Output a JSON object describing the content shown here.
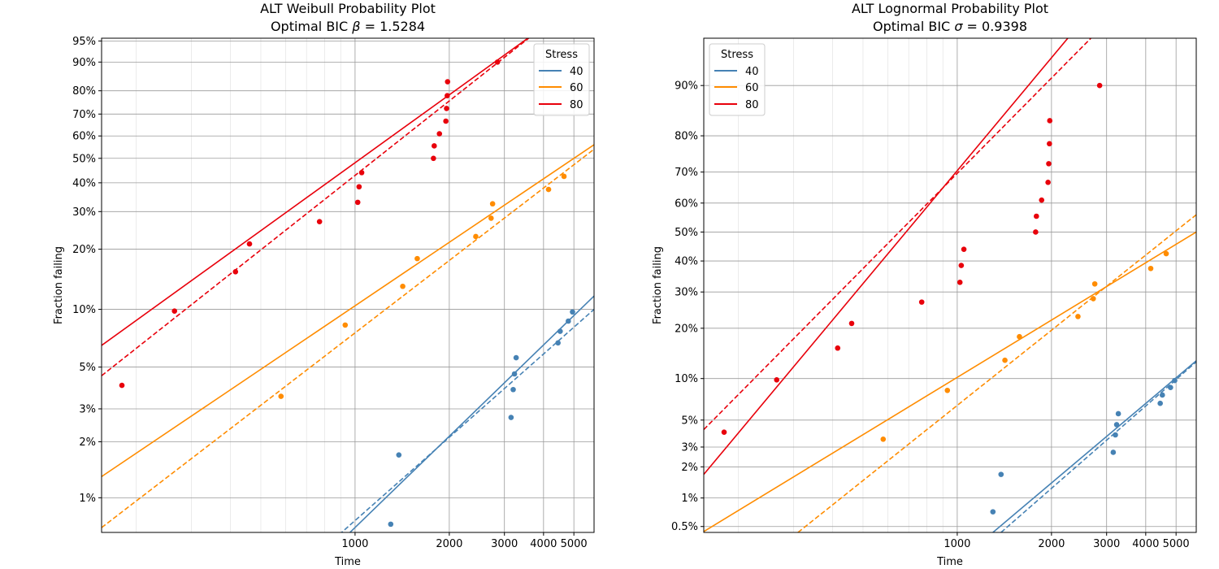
{
  "chart_data": [
    {
      "type": "scatter",
      "scale": "weibull",
      "title": "ALT Weibull Probability Plot",
      "subtitle_prefix": "Optimal BIC ",
      "subtitle_symbol": "β",
      "subtitle_suffix": " = 1.5284",
      "xlabel": "Time",
      "ylabel": "Fraction failing",
      "xscale": "log",
      "xlim": [
        155,
        5800
      ],
      "ylim": [
        0.0065,
        0.955
      ],
      "x_ticks": [
        1000,
        2000,
        3000,
        4000,
        5000
      ],
      "x_tick_labels": [
        "1000",
        "2000",
        "3000",
        "4000",
        "5000"
      ],
      "y_ticks": [
        0.01,
        0.02,
        0.03,
        0.05,
        0.1,
        0.2,
        0.3,
        0.4,
        0.5,
        0.6,
        0.7,
        0.8,
        0.9,
        0.95
      ],
      "y_tick_labels": [
        "1%",
        "2%",
        "3%",
        "5%",
        "10%",
        "20%",
        "30%",
        "40%",
        "50%",
        "60%",
        "70%",
        "80%",
        "90%",
        "95%"
      ],
      "grid": true,
      "legend": {
        "title": "Stress",
        "position": "top-right",
        "entries": [
          "40",
          "60",
          "80"
        ]
      },
      "series": [
        {
          "name": "40",
          "color": "#4682b4",
          "points": [
            [
              1300,
              0.0072
            ],
            [
              1380,
              0.017
            ],
            [
              3150,
              0.027
            ],
            [
              3200,
              0.038
            ],
            [
              3230,
              0.046
            ],
            [
              3270,
              0.056
            ],
            [
              4450,
              0.067
            ],
            [
              4520,
              0.077
            ],
            [
              4800,
              0.087
            ],
            [
              4950,
              0.097
            ]
          ],
          "solid_line": [
            [
              780,
              0.0046
            ],
            [
              5800,
              0.117
            ]
          ],
          "dashed_line": [
            [
              820,
              0.0056
            ],
            [
              5800,
              0.1
            ]
          ]
        },
        {
          "name": "60",
          "color": "#ff8c00",
          "points": [
            [
              580,
              0.035
            ],
            [
              930,
              0.083
            ],
            [
              1420,
              0.131
            ],
            [
              1580,
              0.18
            ],
            [
              2430,
              0.23
            ],
            [
              2720,
              0.28
            ],
            [
              2750,
              0.325
            ],
            [
              4150,
              0.375
            ],
            [
              4650,
              0.425
            ]
          ],
          "solid_line": [
            [
              155,
              0.013
            ],
            [
              5800,
              0.56
            ]
          ],
          "dashed_line": [
            [
              155,
              0.0069
            ],
            [
              5800,
              0.54
            ]
          ]
        },
        {
          "name": "80",
          "color": "#e8000b",
          "points": [
            [
              180,
              0.04
            ],
            [
              265,
              0.098
            ],
            [
              415,
              0.155
            ],
            [
              460,
              0.212
            ],
            [
              770,
              0.27
            ],
            [
              1020,
              0.33
            ],
            [
              1030,
              0.385
            ],
            [
              1050,
              0.44
            ],
            [
              1780,
              0.5
            ],
            [
              1790,
              0.555
            ],
            [
              1860,
              0.61
            ],
            [
              1950,
              0.668
            ],
            [
              1960,
              0.725
            ],
            [
              1970,
              0.78
            ],
            [
              1975,
              0.835
            ],
            [
              2850,
              0.9
            ]
          ],
          "solid_line": [
            [
              155,
              0.065
            ],
            [
              3800,
              0.965
            ]
          ],
          "dashed_line": [
            [
              155,
              0.045
            ],
            [
              3800,
              0.965
            ]
          ]
        }
      ]
    },
    {
      "type": "scatter",
      "scale": "lognormal",
      "title": "ALT Lognormal Probability Plot",
      "subtitle_prefix": "Optimal BIC ",
      "subtitle_symbol": "σ",
      "subtitle_suffix": " = 0.9398",
      "xlabel": "Time",
      "ylabel": "Fraction failing",
      "xscale": "log",
      "xlim": [
        155,
        5800
      ],
      "ylim": [
        0.0043,
        0.955
      ],
      "x_ticks": [
        1000,
        2000,
        3000,
        4000,
        5000
      ],
      "x_tick_labels": [
        "1000",
        "2000",
        "3000",
        "4000",
        "5000"
      ],
      "y_ticks": [
        0.005,
        0.01,
        0.02,
        0.03,
        0.05,
        0.1,
        0.2,
        0.3,
        0.4,
        0.5,
        0.6,
        0.7,
        0.8,
        0.9
      ],
      "y_tick_labels": [
        "0.5%",
        "1%",
        "2%",
        "3%",
        "5%",
        "10%",
        "20%",
        "30%",
        "40%",
        "50%",
        "60%",
        "70%",
        "80%",
        "90%"
      ],
      "grid": true,
      "legend": {
        "title": "Stress",
        "position": "top-left",
        "entries": [
          "40",
          "60",
          "80"
        ]
      },
      "series": [
        {
          "name": "40",
          "color": "#4682b4",
          "points": [
            [
              1300,
              0.0072
            ],
            [
              1380,
              0.017
            ],
            [
              3150,
              0.027
            ],
            [
              3200,
              0.038
            ],
            [
              3230,
              0.046
            ],
            [
              3270,
              0.056
            ],
            [
              4450,
              0.067
            ],
            [
              4520,
              0.077
            ],
            [
              4800,
              0.087
            ],
            [
              4950,
              0.097
            ]
          ],
          "solid_line": [
            [
              1300,
              0.0043
            ],
            [
              5800,
              0.13
            ]
          ],
          "dashed_line": [
            [
              1380,
              0.0043
            ],
            [
              5800,
              0.128
            ]
          ]
        },
        {
          "name": "60",
          "color": "#ff8c00",
          "points": [
            [
              580,
              0.035
            ],
            [
              930,
              0.083
            ],
            [
              1420,
              0.131
            ],
            [
              1580,
              0.18
            ],
            [
              2430,
              0.23
            ],
            [
              2720,
              0.28
            ],
            [
              2750,
              0.325
            ],
            [
              4150,
              0.375
            ],
            [
              4650,
              0.425
            ]
          ],
          "solid_line": [
            [
              155,
              0.0044
            ],
            [
              5800,
              0.5
            ]
          ],
          "dashed_line": [
            [
              310,
              0.0043
            ],
            [
              5800,
              0.56
            ]
          ]
        },
        {
          "name": "80",
          "color": "#e8000b",
          "points": [
            [
              180,
              0.04
            ],
            [
              265,
              0.098
            ],
            [
              415,
              0.155
            ],
            [
              460,
              0.212
            ],
            [
              770,
              0.27
            ],
            [
              1020,
              0.33
            ],
            [
              1030,
              0.385
            ],
            [
              1050,
              0.44
            ],
            [
              1780,
              0.5
            ],
            [
              1790,
              0.555
            ],
            [
              1860,
              0.61
            ],
            [
              1950,
              0.668
            ],
            [
              1960,
              0.725
            ],
            [
              1970,
              0.78
            ],
            [
              1975,
              0.835
            ],
            [
              2850,
              0.9
            ]
          ],
          "solid_line": [
            [
              155,
              0.017
            ],
            [
              2900,
              0.98
            ]
          ],
          "dashed_line": [
            [
              155,
              0.042
            ],
            [
              3600,
              0.98
            ]
          ]
        }
      ]
    }
  ]
}
